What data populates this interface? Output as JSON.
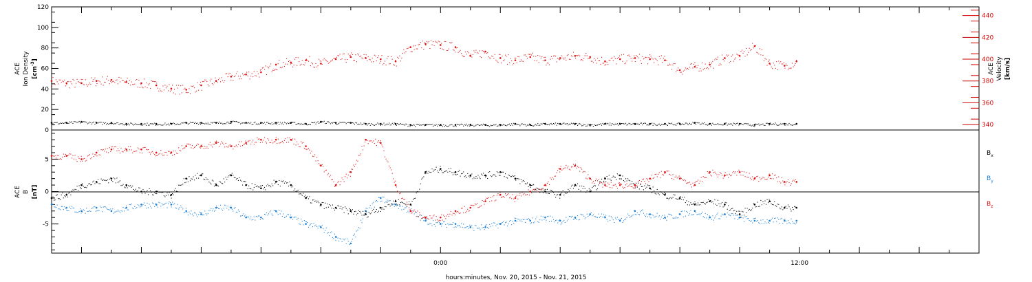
{
  "chart_data": [
    {
      "type": "scatter",
      "panel": "top",
      "ylabel": "ACE\nIon Density\n[cm^-3]",
      "ylabel_right": "ACE\nVelocity\n[km/s]",
      "yticks_left": [
        "0",
        "20",
        "40",
        "60",
        "80",
        "100",
        "120"
      ],
      "ylim_left": [
        0,
        120
      ],
      "yticks_right": [
        "340",
        "360",
        "380",
        "400",
        "420",
        "440"
      ],
      "ylim_right": [
        335,
        448
      ],
      "right_axis_color": "#d00000",
      "series": [
        {
          "name": "Velocity",
          "axis": "right",
          "color": "#dd1111",
          "x": [
            -13.0,
            -12.5,
            -12.0,
            -11.5,
            -11.0,
            -10.5,
            -10.0,
            -9.5,
            -9.0,
            -8.5,
            -8.0,
            -7.5,
            -7.0,
            -6.5,
            -6.0,
            -5.5,
            -5.0,
            -4.5,
            -4.0,
            -3.5,
            -3.0,
            -2.5,
            -2.0,
            -1.5,
            -1.0,
            -0.5,
            0.0,
            0.5,
            1.0,
            1.5,
            2.0,
            2.5,
            3.0,
            3.5,
            4.0,
            4.5,
            5.0,
            5.5,
            6.0,
            6.5,
            7.0,
            7.5,
            8.0,
            8.5,
            9.0,
            9.5,
            10.0,
            10.5,
            11.0,
            11.5,
            11.9
          ],
          "y": [
            380,
            378,
            378,
            380,
            381,
            379,
            378,
            376,
            373,
            372,
            376,
            380,
            384,
            386,
            388,
            395,
            397,
            399,
            396,
            400,
            402,
            401,
            400,
            398,
            411,
            414,
            413,
            411,
            403,
            407,
            401,
            399,
            402,
            399,
            401,
            403,
            402,
            398,
            400,
            401,
            400,
            399,
            390,
            393,
            395,
            401,
            403,
            412,
            396,
            394,
            398
          ]
        },
        {
          "name": "Ion Density",
          "axis": "left",
          "color": "#000000",
          "x": [
            -13.0,
            -12.5,
            -12.0,
            -11.5,
            -11.0,
            -10.5,
            -10.0,
            -9.5,
            -9.0,
            -8.5,
            -8.0,
            -7.5,
            -7.0,
            -6.5,
            -6.0,
            -5.5,
            -5.0,
            -4.5,
            -4.0,
            -3.5,
            -3.0,
            -2.5,
            -2.0,
            -1.5,
            -1.0,
            -0.5,
            0.0,
            0.5,
            1.0,
            1.5,
            2.0,
            2.5,
            3.0,
            3.5,
            4.0,
            4.5,
            5.0,
            5.5,
            6.0,
            6.5,
            7.0,
            7.5,
            8.0,
            8.5,
            9.0,
            9.5,
            10.0,
            10.5,
            11.0,
            11.5,
            11.9
          ],
          "y": [
            7,
            7,
            8,
            7,
            7,
            6,
            6,
            6,
            6,
            7,
            7,
            7,
            8,
            7,
            7,
            7,
            7,
            6,
            8,
            7,
            7,
            6,
            6,
            6,
            5,
            5,
            5,
            5,
            5,
            5,
            5,
            6,
            5,
            6,
            6,
            6,
            5,
            6,
            6,
            6,
            6,
            6,
            6,
            7,
            6,
            6,
            6,
            5,
            6,
            6,
            6
          ]
        }
      ]
    },
    {
      "type": "scatter",
      "panel": "bottom",
      "ylabel": "ACE\nB\n[nT]",
      "yticks": [
        "-5",
        "0",
        "5"
      ],
      "ylim": [
        -9.5,
        9.5
      ],
      "zero_line": true,
      "legend_position": "right",
      "series": [
        {
          "name": "Bx",
          "color": "#000000",
          "x": [
            -13.0,
            -12.5,
            -12.0,
            -11.5,
            -11.0,
            -10.5,
            -10.0,
            -9.5,
            -9.0,
            -8.5,
            -8.0,
            -7.5,
            -7.0,
            -6.5,
            -6.0,
            -5.5,
            -5.0,
            -4.5,
            -4.0,
            -3.5,
            -3.0,
            -2.5,
            -2.0,
            -1.5,
            -1.0,
            -0.5,
            0.0,
            0.5,
            1.0,
            1.5,
            2.0,
            2.5,
            3.0,
            3.5,
            4.0,
            4.5,
            5.0,
            5.5,
            6.0,
            6.5,
            7.0,
            7.5,
            8.0,
            8.5,
            9.0,
            9.5,
            10.0,
            10.5,
            11.0,
            11.5,
            11.9
          ],
          "y": [
            -1,
            -0.5,
            1,
            1.5,
            2,
            1,
            0,
            0,
            -0.5,
            2,
            2.5,
            1,
            2.5,
            1,
            0.5,
            1.5,
            1,
            -1,
            -2,
            -2.5,
            -3,
            -3.5,
            -2.5,
            -1.5,
            -2,
            3,
            3.5,
            3,
            2.5,
            2.5,
            3,
            2,
            1,
            0,
            -0.5,
            1,
            0,
            2,
            2.5,
            1,
            0.5,
            -0.5,
            -1,
            -2,
            -1.5,
            -2,
            -3.5,
            -2,
            -1.5,
            -2.5,
            -2.5
          ]
        },
        {
          "name": "By",
          "color": "#1a7fd4",
          "x": [
            -13.0,
            -12.5,
            -12.0,
            -11.5,
            -11.0,
            -10.5,
            -10.0,
            -9.5,
            -9.0,
            -8.5,
            -8.0,
            -7.5,
            -7.0,
            -6.5,
            -6.0,
            -5.5,
            -5.0,
            -4.5,
            -4.0,
            -3.5,
            -3.0,
            -2.5,
            -2.0,
            -1.5,
            -1.0,
            -0.5,
            0.0,
            0.5,
            1.0,
            1.5,
            2.0,
            2.5,
            3.0,
            3.5,
            4.0,
            4.5,
            5.0,
            5.5,
            6.0,
            6.5,
            7.0,
            7.5,
            8.0,
            8.5,
            9.0,
            9.5,
            10.0,
            10.5,
            11.0,
            11.5,
            11.9
          ],
          "y": [
            -2,
            -2.5,
            -3,
            -2.5,
            -3,
            -2.5,
            -2,
            -2,
            -2,
            -3,
            -3.5,
            -2.5,
            -2.5,
            -4,
            -4,
            -3,
            -4,
            -5,
            -5.5,
            -7,
            -8,
            -3,
            -1,
            -2,
            -3,
            -4.5,
            -5,
            -5,
            -5.5,
            -5.5,
            -5,
            -4.5,
            -4.5,
            -4,
            -4.5,
            -4,
            -3.5,
            -4,
            -4.5,
            -3,
            -3.5,
            -4,
            -3.5,
            -3,
            -4,
            -3.5,
            -4,
            -4.5,
            -4.5,
            -4.5,
            -4.5
          ]
        },
        {
          "name": "Bz",
          "color": "#dd1111",
          "x": [
            -13.0,
            -12.5,
            -12.0,
            -11.5,
            -11.0,
            -10.5,
            -10.0,
            -9.5,
            -9.0,
            -8.5,
            -8.0,
            -7.5,
            -7.0,
            -6.5,
            -6.0,
            -5.5,
            -5.0,
            -4.5,
            -4.0,
            -3.5,
            -3.0,
            -2.5,
            -2.0,
            -1.5,
            -1.0,
            -0.5,
            0.0,
            0.5,
            1.0,
            1.5,
            2.0,
            2.5,
            3.0,
            3.5,
            4.0,
            4.5,
            5.0,
            5.5,
            6.0,
            6.5,
            7.0,
            7.5,
            8.0,
            8.5,
            9.0,
            9.5,
            10.0,
            10.5,
            11.0,
            11.5,
            11.9
          ],
          "y": [
            5.5,
            5.5,
            5,
            6,
            6.5,
            6.5,
            6.5,
            6,
            6,
            7,
            7,
            7.5,
            7,
            7.5,
            8,
            8,
            8,
            7,
            4,
            1,
            3,
            8,
            7.5,
            1,
            -3,
            -4,
            -4,
            -3,
            -2.5,
            -1.5,
            -0.5,
            -1,
            0,
            1,
            3.5,
            4,
            2,
            1,
            1,
            1,
            2,
            3,
            2,
            1,
            3,
            2.5,
            3,
            2,
            2.5,
            1.5,
            1.5
          ]
        }
      ]
    }
  ],
  "xaxis": {
    "label": "hours:minutes, Nov. 20, 2015 - Nov. 21, 2015",
    "tick_labels": [
      {
        "x": 0,
        "label": "0:00"
      },
      {
        "x": 12,
        "label": "12:00"
      }
    ],
    "xlim": [
      -13.0,
      18.0
    ]
  },
  "legend": {
    "bx": {
      "base": "B",
      "sub": "x"
    },
    "by": {
      "base": "B",
      "sub": "y"
    },
    "bz": {
      "base": "B",
      "sub": "z"
    }
  },
  "labels": {
    "top_left_line1": "ACE",
    "top_left_line2": "Ion Density",
    "top_left_line3_base": "[cm",
    "top_left_line3_sup": "-3",
    "top_left_line3_end": "]",
    "top_right_line1": "ACE",
    "top_right_line2": "Velocity",
    "top_right_line3": "[km/s]",
    "bottom_left_line1": "ACE",
    "bottom_left_line2": "B",
    "bottom_left_line3": "[nT]"
  }
}
